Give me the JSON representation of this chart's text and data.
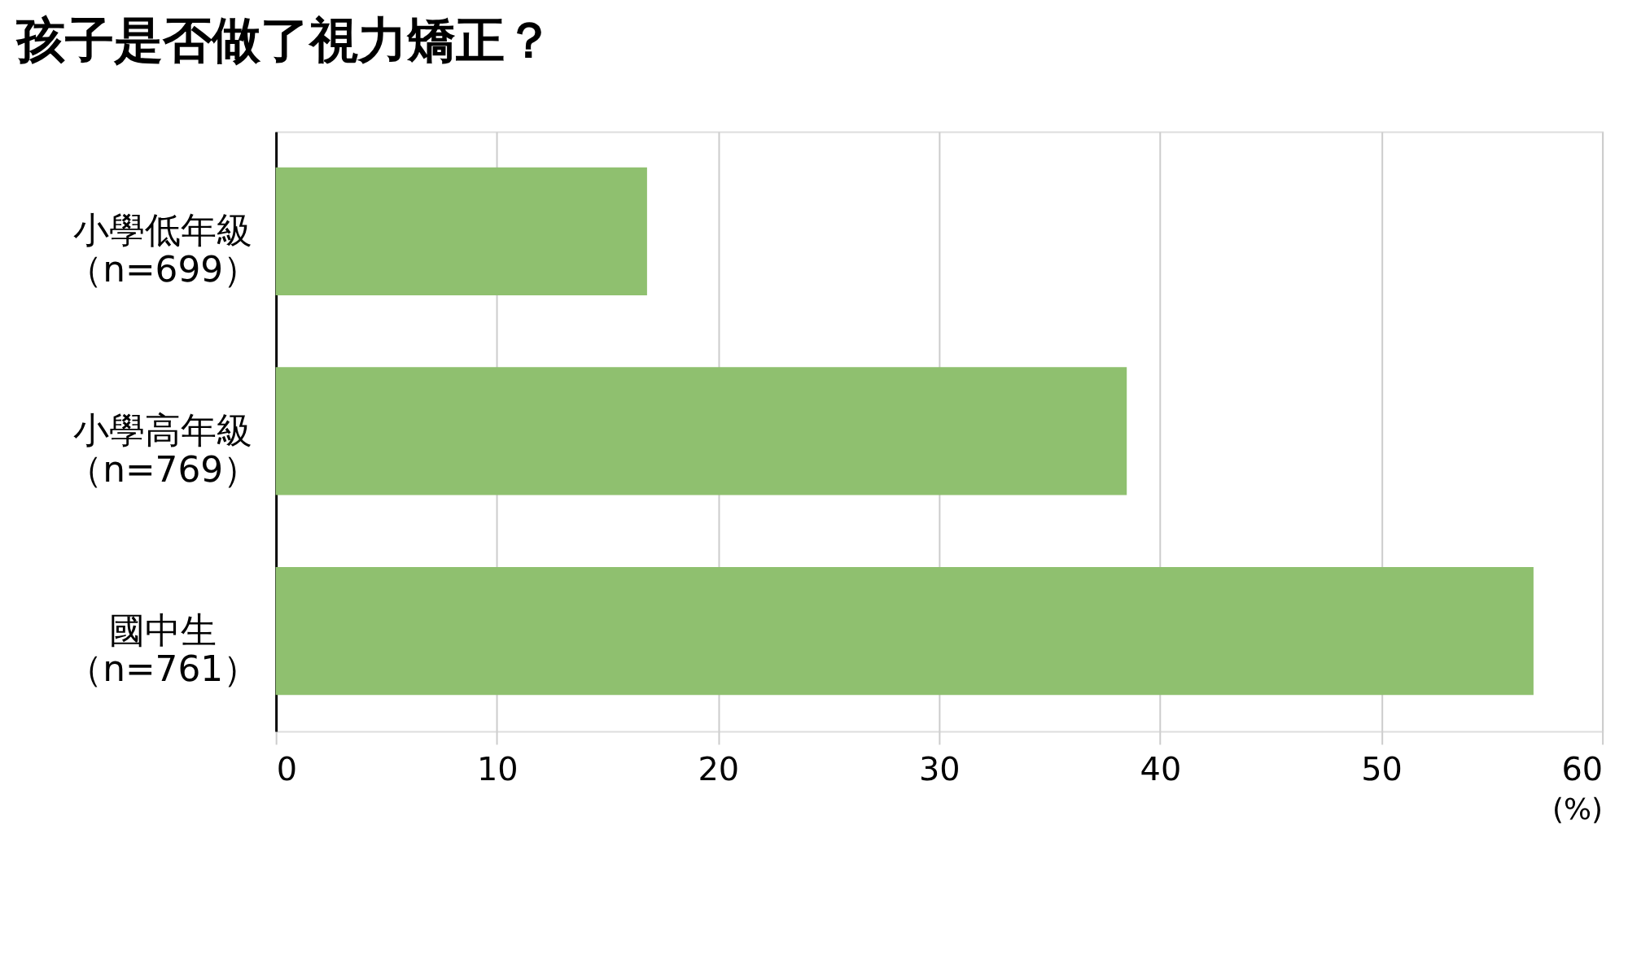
{
  "chart_data": {
    "type": "bar",
    "orientation": "horizontal",
    "title": "孩子是否做了視力矯正？",
    "categories": [
      "小學低年級（n=699）",
      "小學高年級（n=769）",
      "國中生（n=761）"
    ],
    "values": [
      16.8,
      38.5,
      56.9
    ],
    "color": "#8fc06f",
    "xlim": [
      0,
      60
    ],
    "xticks": [
      0,
      10,
      20,
      30,
      40,
      50,
      60
    ],
    "xlabel": "(%)",
    "grid": "x"
  }
}
